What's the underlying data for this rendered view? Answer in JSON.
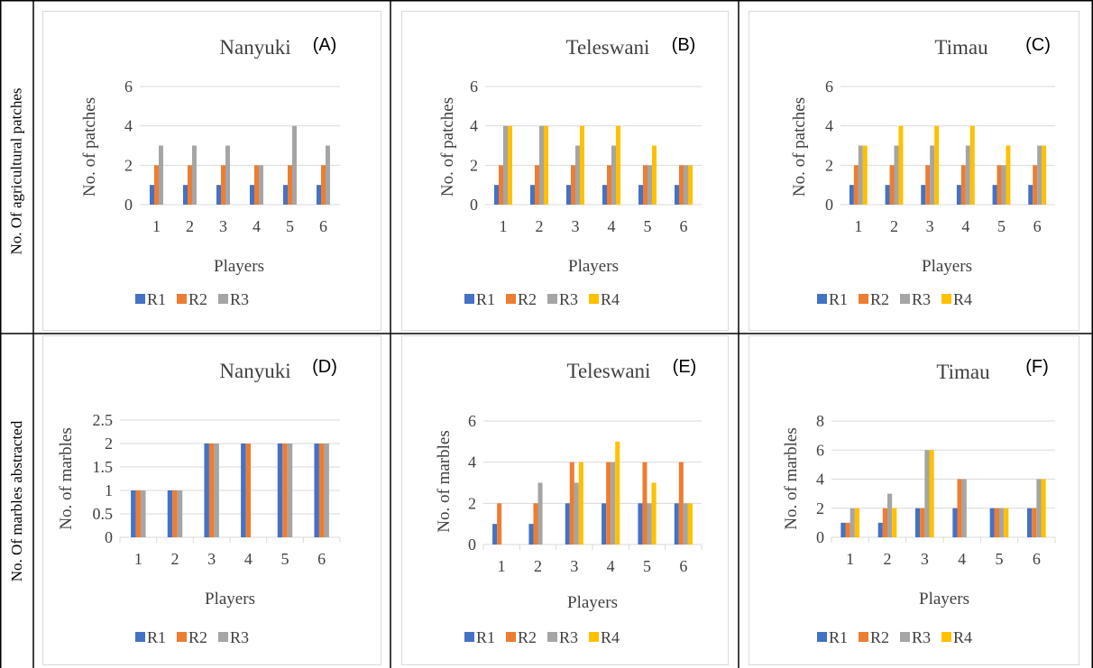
{
  "row_labels": [
    "No. Of agricultural patches",
    "No. Of marbles abstracted"
  ],
  "colors": {
    "R1": "#4472C4",
    "R2": "#ED7D31",
    "R3": "#A5A5A5",
    "R4": "#FFC000"
  },
  "chart_data": [
    {
      "type": "bar",
      "panel": "(A)",
      "title": "Nanyuki",
      "xlabel": "Players",
      "ylabel": "No. of patches",
      "categories": [
        "1",
        "2",
        "3",
        "4",
        "5",
        "6"
      ],
      "ylim": [
        0,
        6
      ],
      "yticks": [
        "0",
        "2",
        "4",
        "6"
      ],
      "grid": true,
      "legend": "bottom",
      "series": [
        {
          "name": "R1",
          "values": [
            1,
            1,
            1,
            1,
            1,
            1
          ]
        },
        {
          "name": "R2",
          "values": [
            2,
            2,
            2,
            2,
            2,
            2
          ]
        },
        {
          "name": "R3",
          "values": [
            3,
            3,
            3,
            2,
            4,
            3
          ]
        }
      ]
    },
    {
      "type": "bar",
      "panel": "(B)",
      "title": "Teleswani",
      "xlabel": "Players",
      "ylabel": "No. of patches",
      "categories": [
        "1",
        "2",
        "3",
        "4",
        "5",
        "6"
      ],
      "ylim": [
        0,
        6
      ],
      "yticks": [
        "0",
        "2",
        "4",
        "6"
      ],
      "grid": true,
      "legend": "bottom",
      "series": [
        {
          "name": "R1",
          "values": [
            1,
            1,
            1,
            1,
            1,
            1
          ]
        },
        {
          "name": "R2",
          "values": [
            2,
            2,
            2,
            2,
            2,
            2
          ]
        },
        {
          "name": "R3",
          "values": [
            4,
            4,
            3,
            3,
            2,
            2
          ]
        },
        {
          "name": "R4",
          "values": [
            4,
            4,
            4,
            4,
            3,
            2
          ]
        }
      ]
    },
    {
      "type": "bar",
      "panel": "(C)",
      "title": "Timau",
      "xlabel": "Players",
      "ylabel": "No. of patches",
      "categories": [
        "1",
        "2",
        "3",
        "4",
        "5",
        "6"
      ],
      "ylim": [
        0,
        6
      ],
      "yticks": [
        "0",
        "2",
        "4",
        "6"
      ],
      "grid": true,
      "legend": "bottom",
      "series": [
        {
          "name": "R1",
          "values": [
            1,
            1,
            1,
            1,
            1,
            1
          ]
        },
        {
          "name": "R2",
          "values": [
            2,
            2,
            2,
            2,
            2,
            2
          ]
        },
        {
          "name": "R3",
          "values": [
            3,
            3,
            3,
            3,
            2,
            3
          ]
        },
        {
          "name": "R4",
          "values": [
            3,
            4,
            4,
            4,
            3,
            3
          ]
        }
      ]
    },
    {
      "type": "bar",
      "panel": "(D)",
      "title": "Nanyuki",
      "xlabel": "Players",
      "ylabel": "No. of marbles",
      "categories": [
        "1",
        "2",
        "3",
        "4",
        "5",
        "6"
      ],
      "ylim": [
        0,
        2.5
      ],
      "yticks": [
        "0",
        "0.5",
        "1",
        "1.5",
        "2",
        "2.5"
      ],
      "grid": true,
      "legend": "bottom",
      "series": [
        {
          "name": "R1",
          "values": [
            1,
            1,
            2,
            2,
            2,
            2
          ]
        },
        {
          "name": "R2",
          "values": [
            1,
            1,
            2,
            2,
            2,
            2
          ]
        },
        {
          "name": "R3",
          "values": [
            1,
            1,
            2,
            0,
            2,
            2
          ]
        }
      ]
    },
    {
      "type": "bar",
      "panel": "(E)",
      "title": "Teleswani",
      "xlabel": "Players",
      "ylabel": "No. of marbles",
      "categories": [
        "1",
        "2",
        "3",
        "4",
        "5",
        "6"
      ],
      "ylim": [
        0,
        6
      ],
      "yticks": [
        "0",
        "2",
        "4",
        "6"
      ],
      "grid": true,
      "legend": "bottom",
      "series": [
        {
          "name": "R1",
          "values": [
            1,
            1,
            2,
            2,
            2,
            2
          ]
        },
        {
          "name": "R2",
          "values": [
            2,
            2,
            4,
            4,
            4,
            4
          ]
        },
        {
          "name": "R3",
          "values": [
            0,
            3,
            3,
            4,
            2,
            2
          ]
        },
        {
          "name": "R4",
          "values": [
            0,
            0,
            4,
            5,
            3,
            2
          ]
        }
      ]
    },
    {
      "type": "bar",
      "panel": "(F)",
      "title": "Timau",
      "xlabel": "Players",
      "ylabel": "No. of marbles",
      "categories": [
        "1",
        "2",
        "3",
        "4",
        "5",
        "6"
      ],
      "ylim": [
        0,
        8
      ],
      "yticks": [
        "0",
        "2",
        "4",
        "6",
        "8"
      ],
      "grid": true,
      "legend": "bottom",
      "series": [
        {
          "name": "R1",
          "values": [
            1,
            1,
            2,
            2,
            2,
            2
          ]
        },
        {
          "name": "R2",
          "values": [
            1,
            2,
            2,
            4,
            2,
            2
          ]
        },
        {
          "name": "R3",
          "values": [
            2,
            3,
            6,
            4,
            2,
            4
          ]
        },
        {
          "name": "R4",
          "values": [
            2,
            2,
            6,
            0,
            2,
            4
          ]
        }
      ]
    }
  ]
}
